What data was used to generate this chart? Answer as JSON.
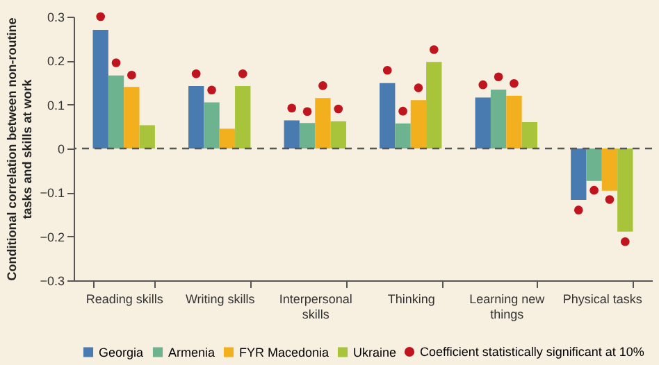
{
  "chart_data": {
    "type": "bar",
    "ylabel": "Conditional correlation between non-routine tasks and skills at work",
    "categories": [
      "Reading skills",
      "Writing skills",
      "Interpersonal skills",
      "Thinking",
      "Learning new things",
      "Physical tasks"
    ],
    "series": [
      {
        "name": "Georgia",
        "color": "#4a7bb0",
        "values": [
          0.27,
          0.142,
          0.064,
          0.149,
          0.116,
          -0.117
        ]
      },
      {
        "name": "Armenia",
        "color": "#6db38f",
        "values": [
          0.166,
          0.105,
          0.058,
          0.057,
          0.134,
          -0.074
        ]
      },
      {
        "name": "FYR Macedonia",
        "color": "#f2b01e",
        "values": [
          0.14,
          0.045,
          0.115,
          0.11,
          0.12,
          -0.096
        ]
      },
      {
        "name": "Ukraine",
        "color": "#a8c43a",
        "values": [
          0.053,
          0.142,
          0.062,
          0.197,
          0.06,
          -0.189
        ]
      },
      {
        "type": "scatter",
        "name": "Coefficient statistically significant at 10%",
        "color": "#c0141e",
        "values": [
          0.3,
          0.17,
          0.092,
          0.178,
          0.145,
          -0.14
        ]
      },
      {
        "type": "scatter",
        "color": "#c0141e",
        "values": [
          0.195,
          0.133,
          0.084,
          0.085,
          0.163,
          -0.095
        ]
      },
      {
        "type": "scatter",
        "color": "#c0141e",
        "values": [
          0.167,
          null,
          0.143,
          0.138,
          0.148,
          -0.116
        ]
      },
      {
        "type": "scatter",
        "color": "#c0141e",
        "values": [
          null,
          0.17,
          0.09,
          0.225,
          null,
          -0.212
        ]
      }
    ],
    "ylim": [
      -0.3,
      0.3
    ],
    "yticks": [
      -0.3,
      -0.2,
      -0.1,
      0,
      0.1,
      0.2,
      0.3
    ],
    "ref_lines": [
      {
        "axis": "y",
        "value": 0,
        "line_style": "dashed"
      }
    ],
    "grid": false,
    "legend": "bottom",
    "marker": "circle"
  }
}
